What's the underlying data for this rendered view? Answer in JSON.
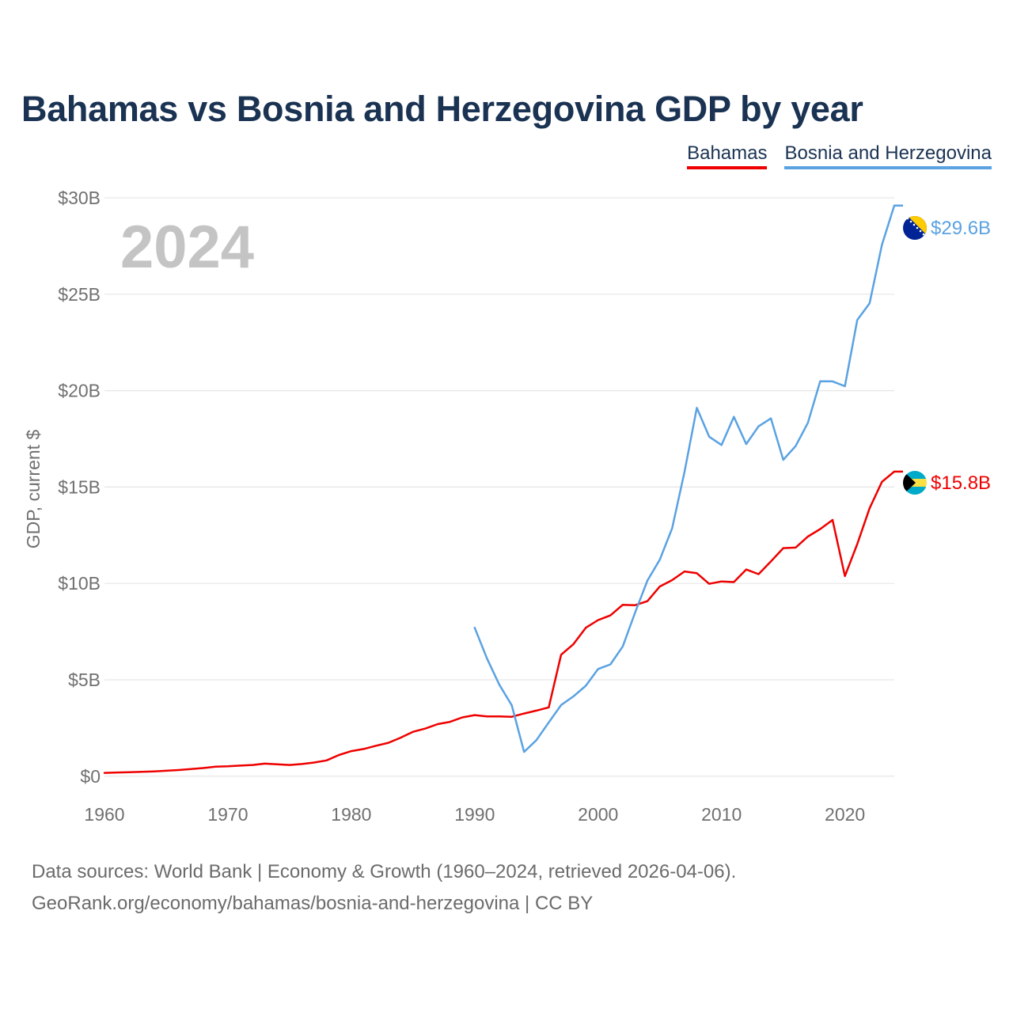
{
  "title": "Bahamas vs Bosnia and Herzegovina GDP by year",
  "legend": {
    "bahamas": "Bahamas",
    "bosnia": "Bosnia and Herzegovina"
  },
  "colors": {
    "bahamas": "#ee0000",
    "bosnia": "#5aa2e2",
    "title": "#1b3353"
  },
  "footer": {
    "line1": "Data sources: World Bank | Economy & Growth (1960–2024, retrieved 2026-04-06).",
    "line2": "GeoRank.org/economy/bahamas/bosnia-and-herzegovina | CC BY"
  },
  "chart_data": {
    "type": "line",
    "title": "Bahamas vs Bosnia and Herzegovina GDP by year",
    "ylabel": "GDP, current $",
    "xlabel": "",
    "year_label": "2024",
    "xlim": [
      1960,
      2024
    ],
    "ylim": [
      -1.2,
      30
    ],
    "x_ticks": [
      1960,
      1970,
      1980,
      1990,
      2000,
      2010,
      2020
    ],
    "x_tick_labels": [
      "1960",
      "1970",
      "1980",
      "1990",
      "2000",
      "2010",
      "2020"
    ],
    "y_ticks": [
      0,
      5,
      10,
      15,
      20,
      25,
      30
    ],
    "y_tick_labels": [
      "$0",
      "$5B",
      "$10B",
      "$15B",
      "$20B",
      "$25B",
      "$30B"
    ],
    "series": [
      {
        "name": "Bahamas",
        "key": "bahamas",
        "end_label": "$15.8B",
        "flag_icon": "bahamas-flag-icon",
        "x": [
          1960,
          1961,
          1962,
          1963,
          1964,
          1965,
          1966,
          1967,
          1968,
          1969,
          1970,
          1971,
          1972,
          1973,
          1974,
          1975,
          1976,
          1977,
          1978,
          1979,
          1980,
          1981,
          1982,
          1983,
          1984,
          1985,
          1986,
          1987,
          1988,
          1989,
          1990,
          1991,
          1992,
          1993,
          1994,
          1995,
          1996,
          1997,
          1998,
          1999,
          2000,
          2001,
          2002,
          2003,
          2004,
          2005,
          2006,
          2007,
          2008,
          2009,
          2010,
          2011,
          2012,
          2013,
          2014,
          2015,
          2016,
          2017,
          2018,
          2019,
          2020,
          2021,
          2022,
          2023,
          2024
        ],
        "values": [
          0.17,
          0.19,
          0.21,
          0.23,
          0.25,
          0.28,
          0.32,
          0.37,
          0.42,
          0.49,
          0.51,
          0.55,
          0.58,
          0.65,
          0.62,
          0.58,
          0.63,
          0.71,
          0.82,
          1.1,
          1.3,
          1.41,
          1.58,
          1.73,
          2.0,
          2.3,
          2.47,
          2.7,
          2.82,
          3.05,
          3.17,
          3.1,
          3.1,
          3.08,
          3.25,
          3.4,
          3.57,
          6.3,
          6.85,
          7.7,
          8.1,
          8.34,
          8.89,
          8.87,
          9.08,
          9.84,
          10.17,
          10.62,
          10.53,
          9.98,
          10.1,
          10.07,
          10.72,
          10.48,
          11.14,
          11.83,
          11.86,
          12.43,
          12.82,
          13.29,
          10.38,
          12.04,
          13.9,
          15.27,
          15.8
        ]
      },
      {
        "name": "Bosnia and Herzegovina",
        "key": "bosnia",
        "end_label": "$29.6B",
        "flag_icon": "bosnia-flag-icon",
        "x": [
          1990,
          1991,
          1992,
          1993,
          1994,
          1995,
          1996,
          1997,
          1998,
          1999,
          2000,
          2001,
          2002,
          2003,
          2004,
          2005,
          2006,
          2007,
          2008,
          2009,
          2010,
          2011,
          2012,
          2013,
          2014,
          2015,
          2016,
          2017,
          2018,
          2019,
          2020,
          2021,
          2022,
          2023,
          2024
        ],
        "values": [
          7.7,
          6.1,
          4.74,
          3.68,
          1.26,
          1.87,
          2.79,
          3.69,
          4.14,
          4.69,
          5.56,
          5.8,
          6.73,
          8.49,
          10.15,
          11.23,
          12.86,
          15.78,
          19.11,
          17.61,
          17.18,
          18.64,
          17.23,
          18.15,
          18.56,
          16.41,
          17.12,
          18.33,
          20.49,
          20.48,
          20.23,
          23.66,
          24.53,
          27.57,
          29.6
        ]
      }
    ]
  }
}
